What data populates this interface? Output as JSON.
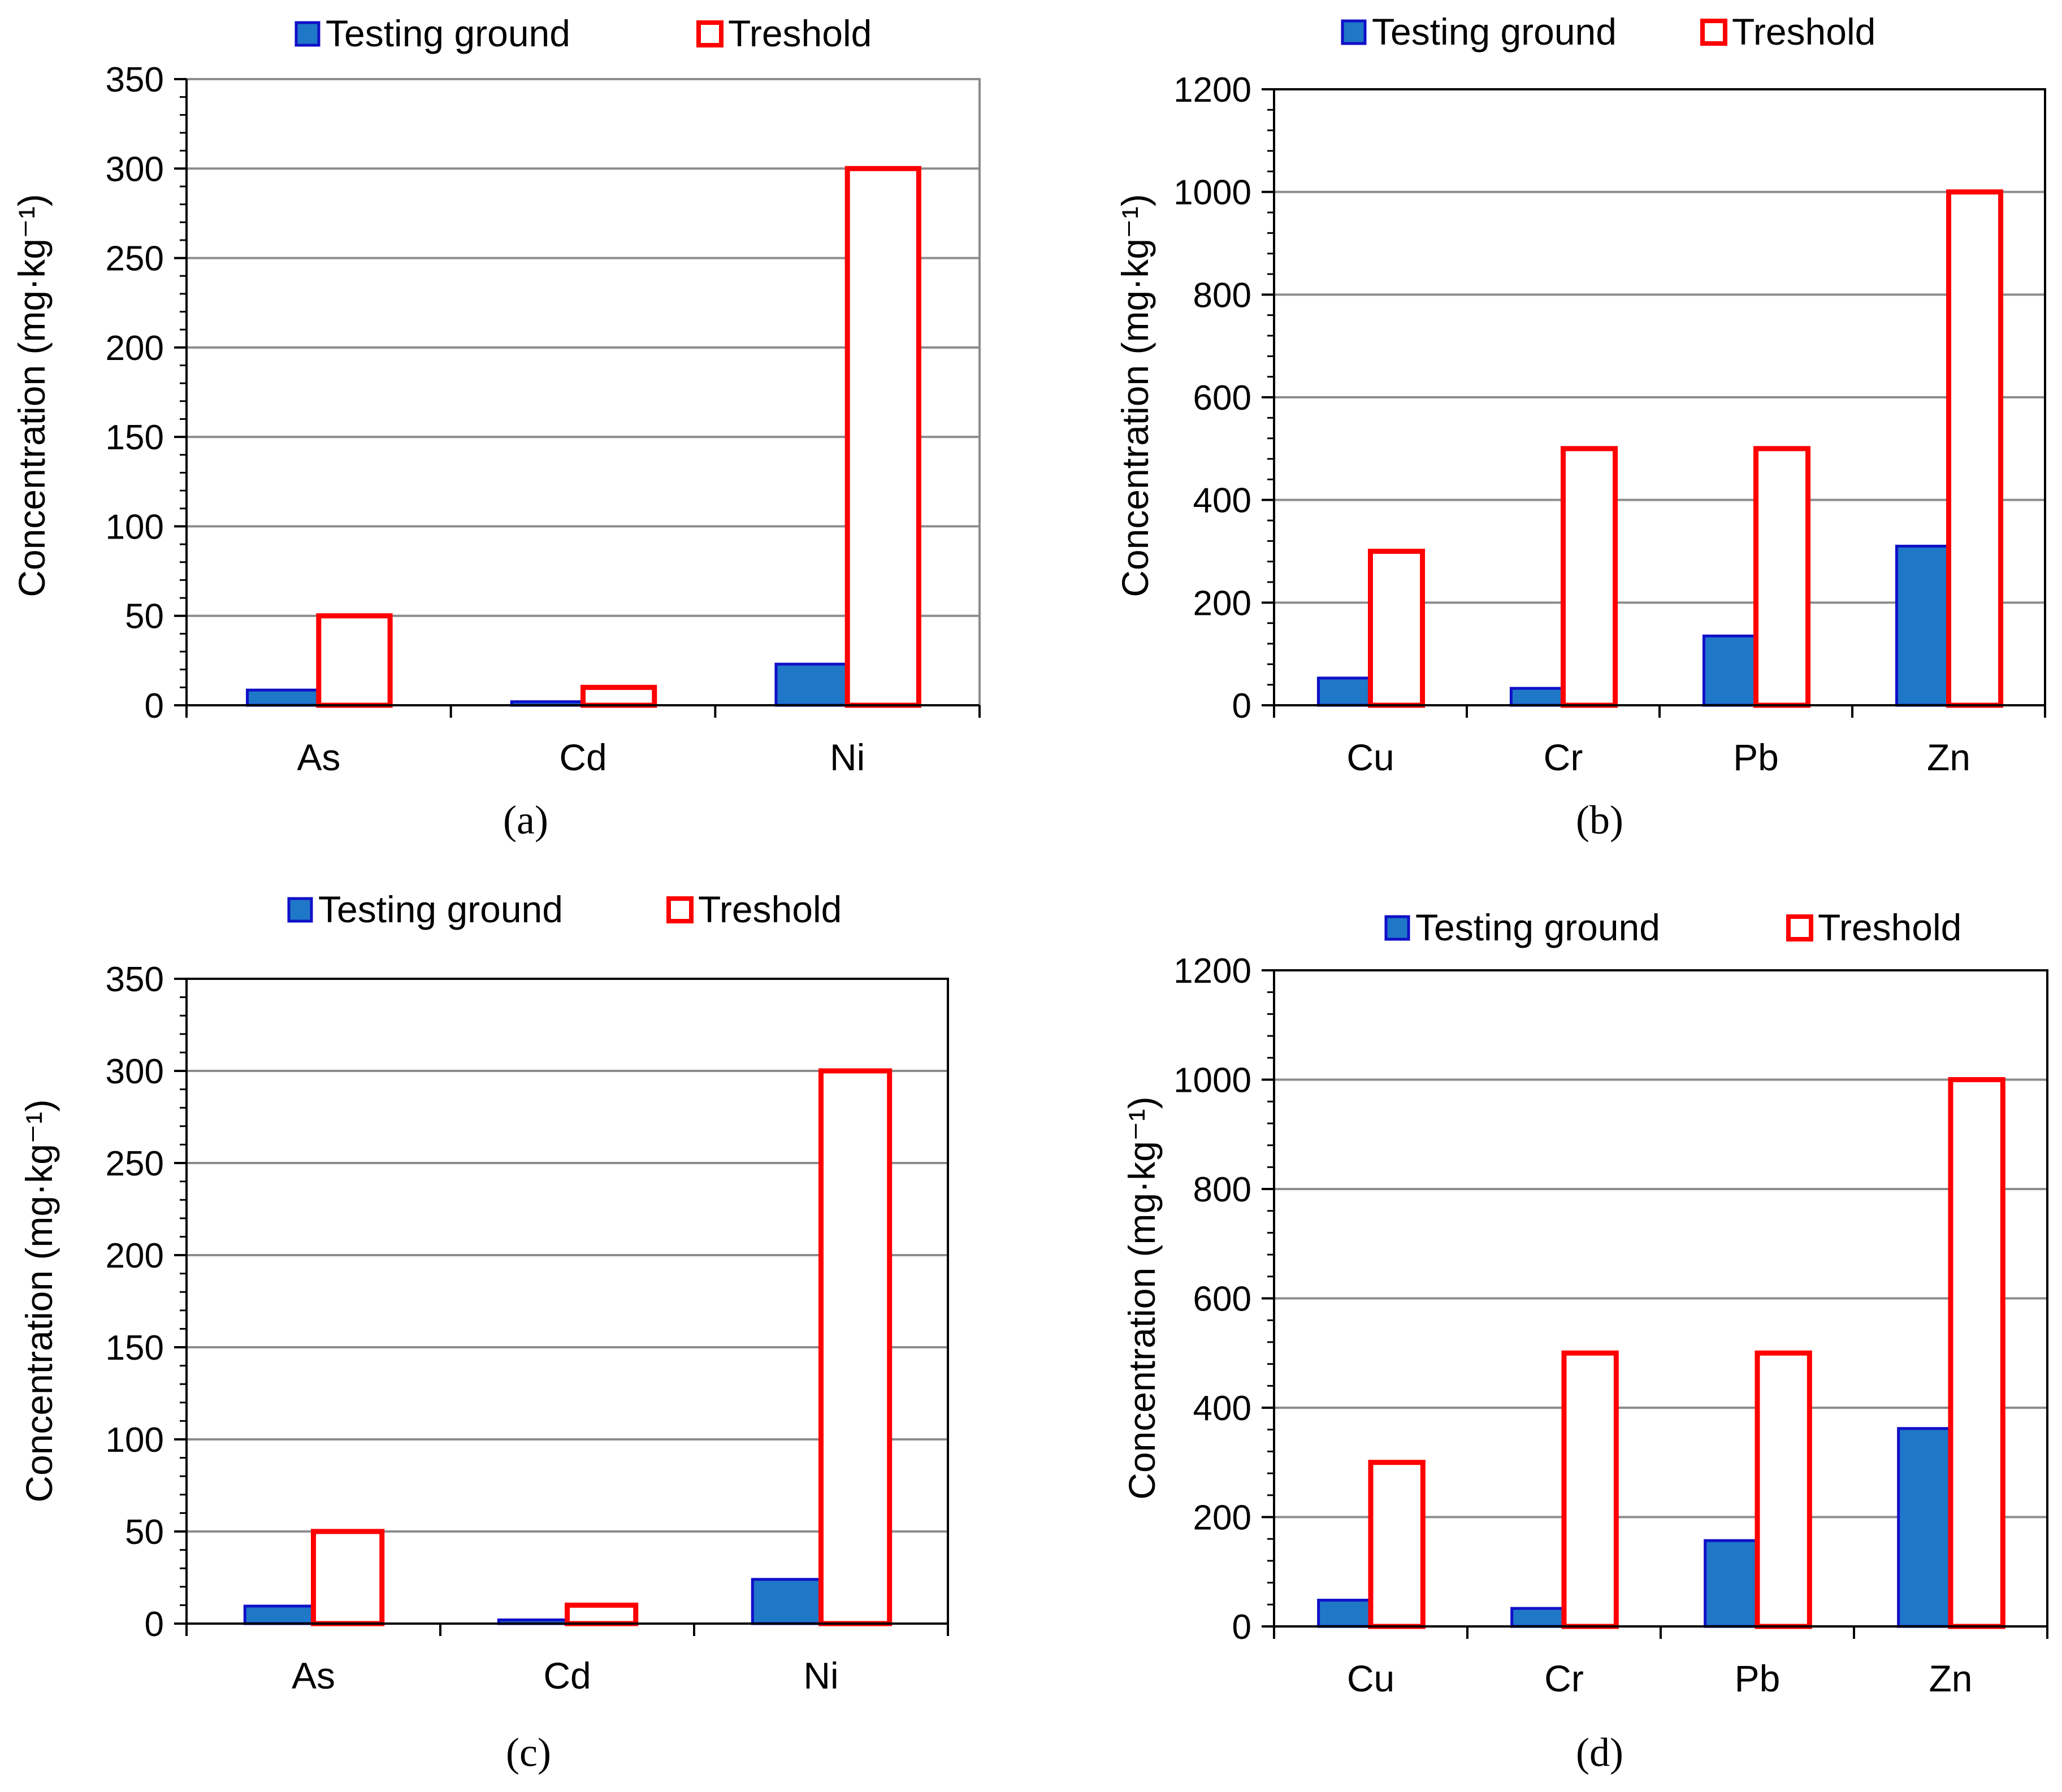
{
  "legend": {
    "testing_ground": "Testing ground",
    "threshold": "Treshold"
  },
  "colors": {
    "testing_fill": "#1F77C8",
    "testing_stroke": "#1010C8",
    "threshold_stroke": "#FF0000",
    "grid": "#8C8C8C",
    "axis": "#000000"
  },
  "chart_data": [
    {
      "type": "bar",
      "panel": "a",
      "caption": "(a)",
      "ylabel": "Concentration (mg·kg⁻¹)",
      "categories": [
        "As",
        "Cd",
        "Ni"
      ],
      "series": [
        {
          "name": "Testing ground",
          "values": [
            8.5,
            2.0,
            23.0
          ]
        },
        {
          "name": "Treshold",
          "values": [
            50,
            10,
            300
          ]
        }
      ],
      "ylim": [
        0,
        350
      ],
      "yticks": [
        0,
        50,
        100,
        150,
        200,
        250,
        300,
        350
      ],
      "grid": true,
      "legend_position": "top"
    },
    {
      "type": "bar",
      "panel": "b",
      "caption": "(b)",
      "ylabel": "Concentration (mg·kg⁻¹)",
      "categories": [
        "Cu",
        "Cr",
        "Pb",
        "Zn"
      ],
      "series": [
        {
          "name": "Testing ground",
          "values": [
            53,
            33,
            135,
            310
          ]
        },
        {
          "name": "Treshold",
          "values": [
            300,
            500,
            500,
            1000
          ]
        }
      ],
      "ylim": [
        0,
        1200
      ],
      "yticks": [
        0,
        200,
        400,
        600,
        800,
        1000,
        1200
      ],
      "grid": true,
      "legend_position": "top"
    },
    {
      "type": "bar",
      "panel": "c",
      "caption": "(c)",
      "ylabel": "Concentration (mg·kg⁻¹)",
      "categories": [
        "As",
        "Cd",
        "Ni"
      ],
      "series": [
        {
          "name": "Testing ground",
          "values": [
            9.5,
            2.0,
            24.0
          ]
        },
        {
          "name": "Treshold",
          "values": [
            50,
            10,
            300
          ]
        }
      ],
      "ylim": [
        0,
        350
      ],
      "yticks": [
        0,
        50,
        100,
        150,
        200,
        250,
        300,
        350
      ],
      "grid": true,
      "legend_position": "top"
    },
    {
      "type": "bar",
      "panel": "d",
      "caption": "(d)",
      "ylabel": "Concentration (mg·kg⁻¹)",
      "categories": [
        "Cu",
        "Cr",
        "Pb",
        "Zn"
      ],
      "series": [
        {
          "name": "Testing ground",
          "values": [
            48,
            33,
            157,
            362
          ]
        },
        {
          "name": "Treshold",
          "values": [
            300,
            500,
            500,
            1000
          ]
        }
      ],
      "ylim": [
        0,
        1200
      ],
      "yticks": [
        0,
        200,
        400,
        600,
        800,
        1000,
        1200
      ],
      "grid": true,
      "legend_position": "top"
    }
  ]
}
